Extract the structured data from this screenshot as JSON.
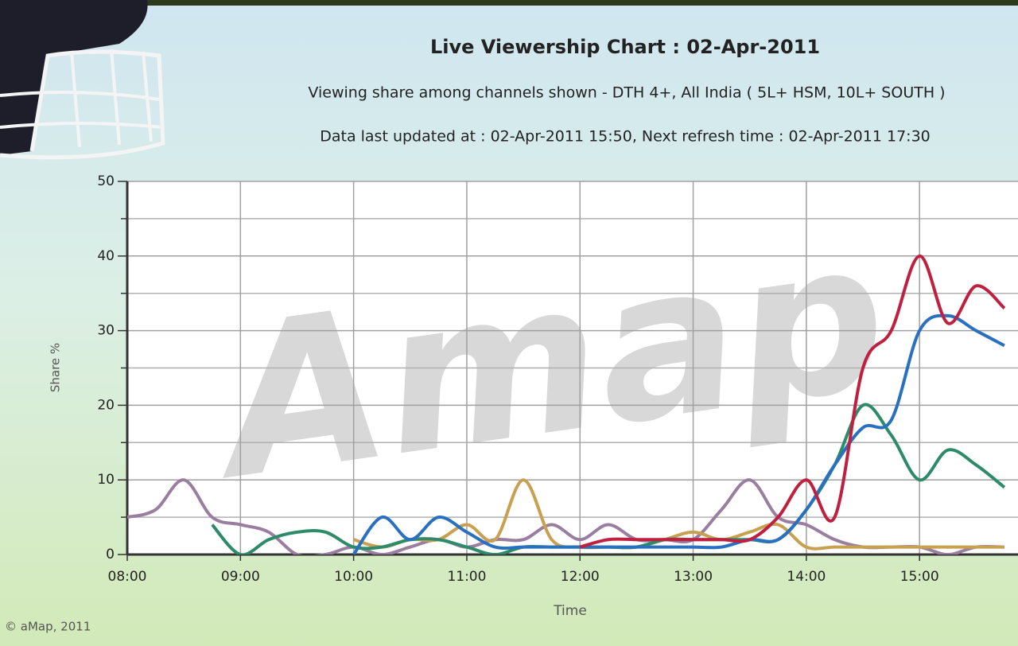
{
  "chart_data": {
    "type": "line",
    "title": "Live Viewership Chart : 02-Apr-2011",
    "subtitle": "Viewing share among channels shown - DTH 4+, All India ( 5L+ HSM, 10L+ SOUTH )",
    "update_note": "Data last updated at : 02-Apr-2011 15:50, Next refresh time : 02-Apr-2011 17:30",
    "watermark": "Amap",
    "copyright": "© aMap, 2011",
    "x_label": "Time",
    "y_label": "Share %",
    "x": [
      8,
      8.25,
      8.5,
      8.75,
      9,
      9.25,
      9.5,
      9.75,
      10,
      10.25,
      10.5,
      10.75,
      11,
      11.25,
      11.5,
      11.75,
      12,
      12.25,
      12.5,
      12.75,
      13,
      13.25,
      13.5,
      13.75,
      14,
      14.25,
      14.5,
      14.75,
      15,
      15.25,
      15.5,
      15.75
    ],
    "series": [
      {
        "color": "#9a7ea0",
        "values": [
          5,
          6,
          10,
          5,
          4,
          3,
          0,
          0,
          1,
          0,
          1,
          2,
          1,
          2,
          2,
          4,
          2,
          4,
          2,
          2,
          2,
          6,
          10,
          5,
          4,
          2,
          1,
          1,
          1,
          0,
          1,
          1
        ]
      },
      {
        "color": "#c8a050",
        "values": [
          null,
          null,
          null,
          null,
          null,
          null,
          null,
          null,
          2,
          1,
          2,
          2,
          4,
          2,
          10,
          2,
          1,
          1,
          1,
          2,
          3,
          2,
          3,
          4,
          1,
          1,
          1,
          1,
          1,
          1,
          1,
          1
        ]
      },
      {
        "color": "#2e8b6a",
        "values": [
          null,
          null,
          null,
          4,
          0,
          2,
          3,
          3,
          1,
          1,
          2,
          2,
          1,
          0,
          1,
          1,
          1,
          1,
          1,
          2,
          2,
          2,
          2,
          2,
          6,
          12,
          20,
          16,
          10,
          14,
          12,
          9
        ]
      },
      {
        "color": "#2a70c0",
        "values": [
          null,
          null,
          null,
          null,
          null,
          null,
          null,
          null,
          0,
          5,
          2,
          5,
          3,
          1,
          1,
          1,
          1,
          1,
          1,
          1,
          1,
          1,
          2,
          2,
          6,
          12,
          17,
          18,
          30,
          32,
          30,
          28
        ]
      },
      {
        "color": "#c0203f",
        "values": [
          null,
          null,
          null,
          null,
          null,
          null,
          null,
          null,
          null,
          null,
          null,
          null,
          null,
          null,
          null,
          null,
          1,
          2,
          2,
          2,
          2,
          2,
          2,
          5,
          10,
          5,
          25,
          30,
          40,
          31,
          36,
          33
        ]
      }
    ],
    "xlim": [
      8,
      15.87
    ],
    "xticks": [
      {
        "value": 8,
        "label": "08:00"
      },
      {
        "value": 9,
        "label": "09:00"
      },
      {
        "value": 10,
        "label": "10:00"
      },
      {
        "value": 11,
        "label": "11:00"
      },
      {
        "value": 12,
        "label": "12:00"
      },
      {
        "value": 13,
        "label": "13:00"
      },
      {
        "value": 14,
        "label": "14:00"
      },
      {
        "value": 15,
        "label": "15:00"
      }
    ],
    "ylim": [
      0,
      50
    ],
    "yticks": [
      0,
      10,
      20,
      30,
      40,
      50
    ],
    "minor_yticks": [
      5,
      15,
      25,
      35,
      45
    ],
    "grid": true
  }
}
